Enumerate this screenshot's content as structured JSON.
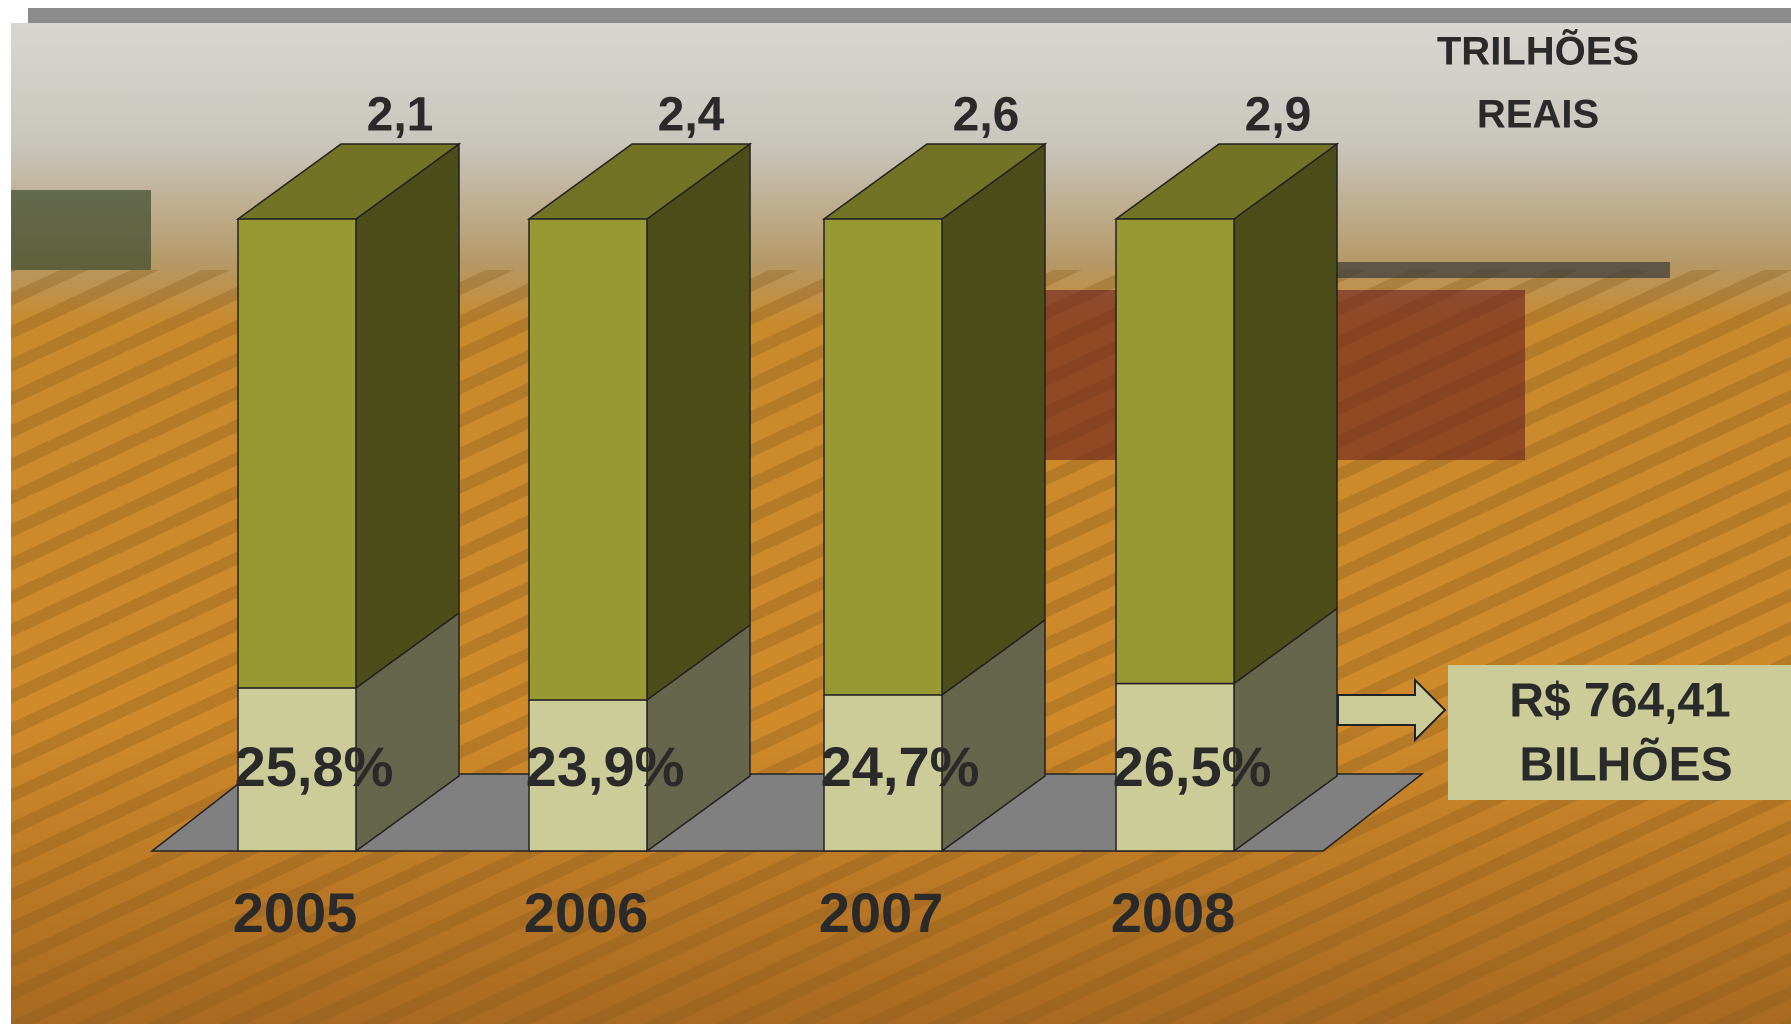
{
  "chart_data": {
    "type": "bar3d",
    "categories": [
      "2005",
      "2006",
      "2007",
      "2008"
    ],
    "totals": {
      "values": [
        2.1,
        2.4,
        2.6,
        2.9
      ],
      "value_labels": [
        "2,1",
        "2,4",
        "2,6",
        "2,9"
      ],
      "color": "#999933"
    },
    "series": [
      {
        "color": "#cccc99",
        "values": [
          25.8,
          23.9,
          24.7,
          26.5
        ],
        "value_labels": [
          "25,8%",
          "23,9%",
          "24,7%",
          "26,5%"
        ]
      }
    ],
    "ylim": [
      0,
      100
    ],
    "unit_label": [
      "TRILHÕES",
      "REAIS"
    ],
    "callout": [
      "R$ 764,41",
      "BILHÕES"
    ]
  }
}
